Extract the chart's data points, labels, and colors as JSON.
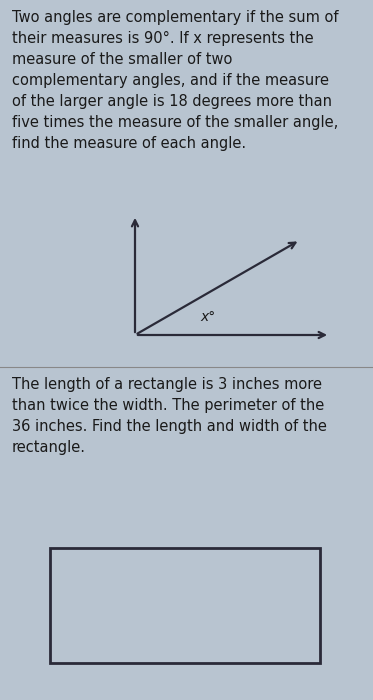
{
  "bg_color": "#b8c4d0",
  "text_color": "#1a1a1a",
  "problem1_text": "Two angles are complementary if the sum of\ntheir measures is 90°. If x represents the\nmeasure of the smaller of two\ncomplementary angles, and if the measure\nof the larger angle is 18 degrees more than\nfive times the measure of the smaller angle,\nfind the measure of each angle.",
  "problem2_text": "The length of a rectangle is 3 inches more\nthan twice the width. The perimeter of the\n36 inches. Find the length and width of the\nrectangle.",
  "angle_label": "x°",
  "font_size_text": 10.5,
  "font_size_angle": 10,
  "divider_color": "#888888",
  "rect_edge_color": "#2a2a38",
  "arrow_color": "#2a2a38"
}
